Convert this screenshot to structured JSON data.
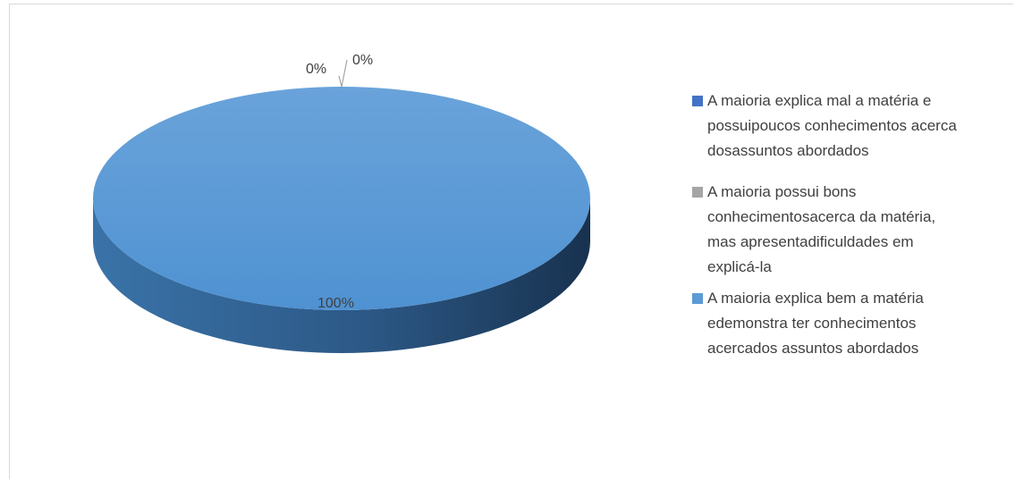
{
  "chart_data": {
    "type": "pie",
    "style": "3d",
    "categories": [
      "A maioria explica mal a matéria e possuipoucos conhecimentos acerca dosassuntos abordados",
      "A maioria possui bons conhecimentosacerca da matéria, mas apresentadificuldades em explicá-la",
      "A maioria explica bem a matéria edemonstra ter conhecimentos acercados assuntos abordados"
    ],
    "values": [
      0,
      0,
      100
    ],
    "data_labels": [
      "0%",
      "0%",
      "100%"
    ],
    "colors": [
      "#4472c4",
      "#a5a5a5",
      "#5b9bd5"
    ],
    "legend_position": "right",
    "legend_lines": [
      [
        "A maioria explica mal a matéria e",
        "possuipoucos conhecimentos acerca",
        "dosassuntos abordados"
      ],
      [
        "A maioria possui bons",
        "conhecimentosacerca da matéria,",
        "mas apresentadificuldades em",
        "explicá-la"
      ],
      [
        "A maioria explica bem a matéria",
        "edemonstra ter conhecimentos",
        "acercados assuntos abordados"
      ]
    ]
  }
}
